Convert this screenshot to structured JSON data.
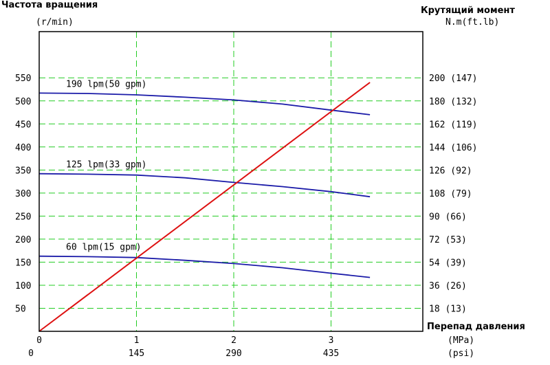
{
  "chart_data": {
    "type": "line",
    "title_left": "Частота вращения",
    "unit_left": "(r/min)",
    "title_right": "Крутящий момент",
    "unit_right": "N.m(ft.lb)",
    "xlabel": "Перепад давления",
    "x_unit_mpa": "(MPa)",
    "x_unit_psi": "(psi)",
    "x_ticks_mpa": [
      "0",
      "1",
      "2",
      "3"
    ],
    "x_ticks_psi": [
      "0",
      "145",
      "290",
      "435"
    ],
    "xlim": [
      0,
      3.95
    ],
    "ylim": [
      0,
      600
    ],
    "y_ticks_left": [
      "50",
      "100",
      "150",
      "200",
      "250",
      "300",
      "350",
      "400",
      "450",
      "500",
      "550"
    ],
    "y_ticks_right": [
      "18 (13)",
      "36 (26)",
      "54 (39)",
      "72 (53)",
      "90 (66)",
      "108 (79)",
      "126 (92)",
      "144 (106)",
      "162 (119)",
      "180 (132)",
      "200 (147)"
    ],
    "grid": true,
    "series": [
      {
        "name": "190 lpm(50 gpm)",
        "color": "#1a1aa8",
        "axis": "speed",
        "x": [
          0,
          0.5,
          1,
          1.5,
          2,
          2.5,
          3,
          3.4
        ],
        "y": [
          517,
          516,
          513,
          508,
          502,
          493,
          480,
          470
        ]
      },
      {
        "name": "125 lpm(33 gpm)",
        "color": "#1a1aa8",
        "axis": "speed",
        "x": [
          0,
          0.5,
          1,
          1.5,
          2,
          2.5,
          3,
          3.4
        ],
        "y": [
          342,
          341,
          339,
          333,
          323,
          314,
          303,
          292
        ]
      },
      {
        "name": "60 lpm(15 gpm)",
        "color": "#1a1aa8",
        "axis": "speed",
        "x": [
          0,
          0.5,
          1,
          1.5,
          2,
          2.5,
          3,
          3.4
        ],
        "y": [
          163,
          162,
          160,
          154,
          147,
          138,
          126,
          117
        ]
      },
      {
        "name": "",
        "color": "#dd1111",
        "axis": "torque",
        "x": [
          0,
          3.4
        ],
        "y": [
          0,
          540
        ]
      }
    ]
  }
}
